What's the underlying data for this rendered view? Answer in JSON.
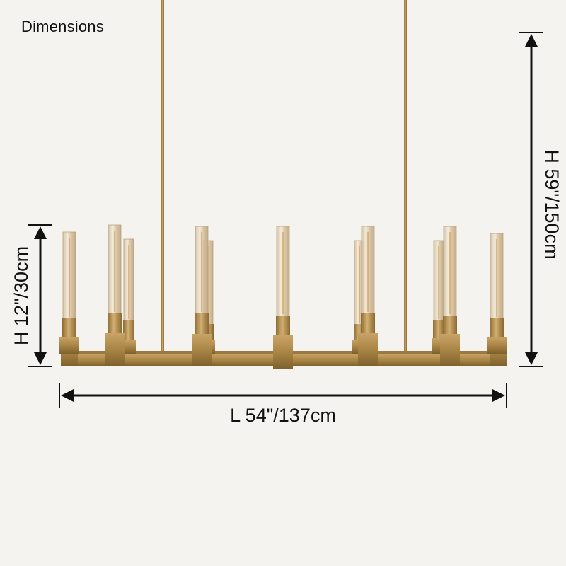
{
  "title": "Dimensions",
  "dimensions": {
    "length": "L 54\"/137cm",
    "fixture_height": "H 12\"/30cm",
    "overall_height": "H 59\"/150cm"
  },
  "colors": {
    "background": "#f5f3ef",
    "brass": "#b38e4f",
    "brass_dark": "#8a6a33",
    "glass": "#e8ddc9",
    "arrow": "#111111"
  }
}
